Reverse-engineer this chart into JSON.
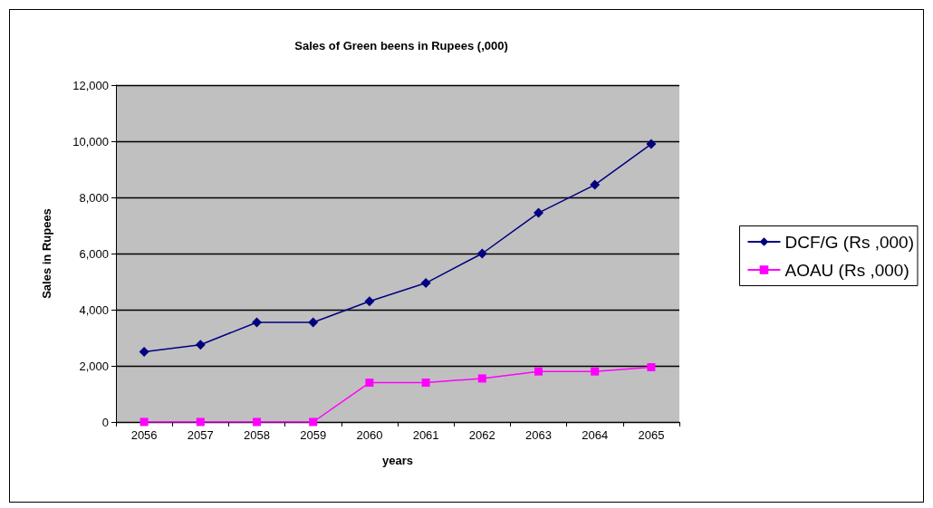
{
  "chart_data": {
    "type": "line",
    "title": "Sales of Green beens in Rupees (,000)",
    "xlabel": "years",
    "ylabel": "Sales in Rupees",
    "categories": [
      "2056",
      "2057",
      "2058",
      "2059",
      "2060",
      "2061",
      "2062",
      "2063",
      "2064",
      "2065"
    ],
    "series": [
      {
        "name": "DCF/G (Rs ,000)",
        "color": "#000080",
        "marker": "diamond",
        "values": [
          2500,
          2750,
          3550,
          3550,
          4300,
          4950,
          6000,
          7450,
          8450,
          9900
        ]
      },
      {
        "name": "AOAU (Rs ,000)",
        "color": "#ff00ff",
        "marker": "square",
        "values": [
          0,
          0,
          0,
          0,
          1400,
          1400,
          1550,
          1800,
          1800,
          1950
        ]
      }
    ],
    "ylim": [
      0,
      12000
    ],
    "yticks": [
      0,
      {
        "value": 2000,
        "label": "2,000"
      },
      {
        "value": 4000,
        "label": "4,000"
      },
      {
        "value": 6000,
        "label": "6,000"
      },
      {
        "value": 8000,
        "label": "8,000"
      },
      {
        "value": 10000,
        "label": "10,000"
      },
      {
        "value": 12000,
        "label": "12,000"
      }
    ],
    "grid": "y",
    "legend": "right",
    "line_style": "solid"
  }
}
